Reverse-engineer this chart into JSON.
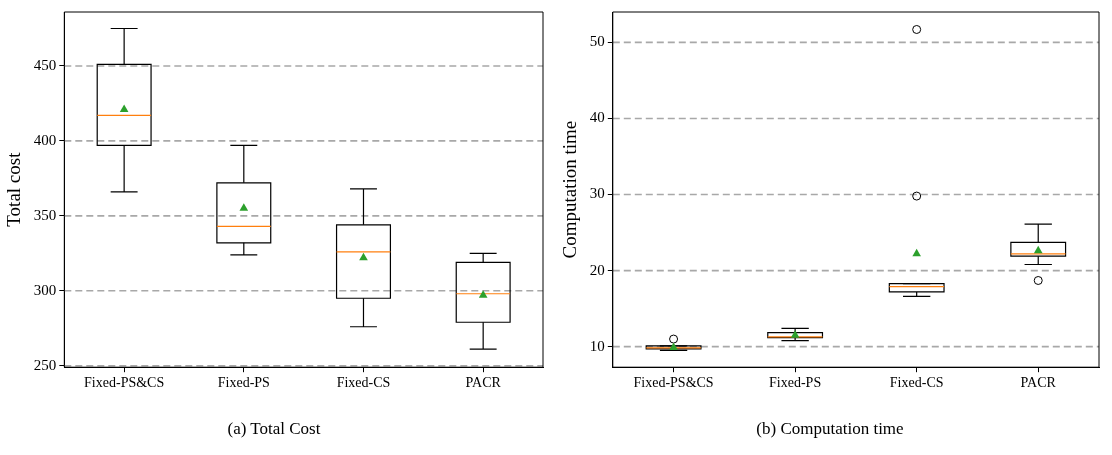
{
  "chart_data": [
    {
      "type": "box",
      "title": "(a) Total Cost",
      "ylabel": "Total cost",
      "categories": [
        "Fixed-PS&CS",
        "Fixed-PS",
        "Fixed-CS",
        "PACR"
      ],
      "ylim": [
        249,
        486
      ],
      "yticks": [
        250,
        300,
        350,
        400,
        450
      ],
      "grid": "y",
      "series": [
        {
          "color": "#000000",
          "boxes": [
            {
              "low": 366,
              "q1": 397,
              "median": 417,
              "q3": 451,
              "high": 475,
              "mean": 421
            },
            {
              "low": 324,
              "q1": 332,
              "median": 343,
              "q3": 372,
              "high": 397,
              "mean": 355
            },
            {
              "low": 276,
              "q1": 295,
              "median": 326,
              "q3": 344,
              "high": 368,
              "mean": 322
            },
            {
              "low": 261,
              "q1": 279,
              "median": 298,
              "q3": 319,
              "high": 325,
              "mean": 297
            }
          ]
        }
      ]
    },
    {
      "type": "box",
      "title": "(b) Computation time",
      "ylabel": "Computation time",
      "categories": [
        "Fixed-PS&CS",
        "Fixed-PS",
        "Fixed-CS",
        "PACR"
      ],
      "ylim": [
        7.3,
        54
      ],
      "yticks": [
        10,
        20,
        30,
        40,
        50
      ],
      "grid": "y",
      "series": [
        {
          "color": "#000000",
          "boxes": [
            {
              "low": 9.5,
              "q1": 9.7,
              "median": 9.85,
              "q3": 10.1,
              "high": 10.1,
              "mean": 9.9,
              "outliers": [
                11.0
              ]
            },
            {
              "low": 10.8,
              "q1": 11.2,
              "median": 11.3,
              "q3": 11.85,
              "high": 12.4,
              "mean": 11.5
            },
            {
              "low": 16.6,
              "q1": 17.2,
              "median": 17.9,
              "q3": 18.3,
              "high": 18.3,
              "mean": 22.2,
              "outliers": [
                29.8,
                51.7
              ]
            },
            {
              "low": 20.8,
              "q1": 21.9,
              "median": 22.2,
              "q3": 23.7,
              "high": 26.1,
              "mean": 22.6,
              "outliers": [
                18.7
              ]
            }
          ]
        }
      ]
    }
  ]
}
